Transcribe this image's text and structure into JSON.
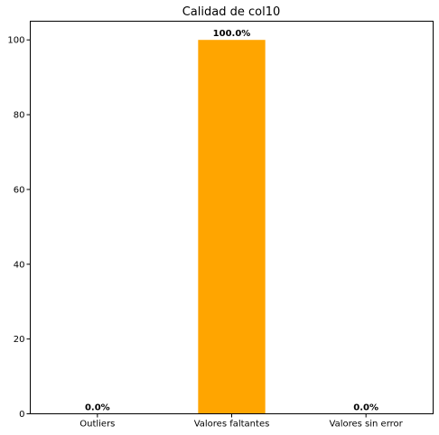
{
  "chart_data": {
    "type": "bar",
    "title": "Calidad de col10",
    "categories": [
      "Outliers",
      "Valores faltantes",
      "Valores sin error"
    ],
    "values": [
      0,
      100,
      0
    ],
    "data_labels": [
      "0.0%",
      "100.0%",
      "0.0%"
    ],
    "xlabel": "",
    "ylabel": "",
    "ylim": [
      0,
      105
    ],
    "yticks": [
      0,
      20,
      40,
      60,
      80,
      100
    ],
    "ytick_labels": [
      "0",
      "20",
      "40",
      "60",
      "80",
      "100"
    ],
    "bar_color": "#ffa500",
    "grid": false,
    "legend": "none"
  }
}
